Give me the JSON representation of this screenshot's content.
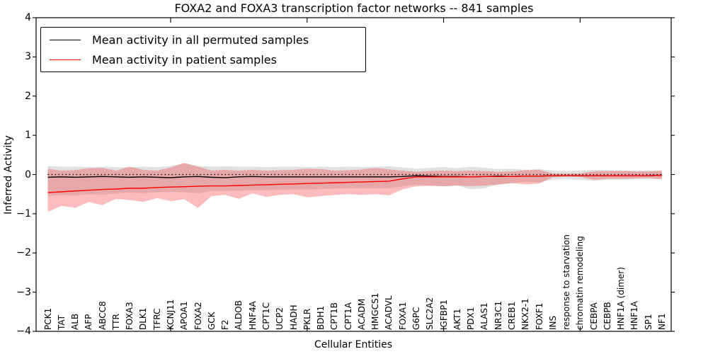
{
  "chart_data": {
    "type": "line",
    "title": "FOXA2 and FOXA3 transcription factor networks -- 841 samples",
    "xlabel": "Cellular Entities",
    "ylabel": "Inferred Activity",
    "ylim": [
      -4,
      4
    ],
    "yticks": [
      4,
      3,
      2,
      1,
      0,
      -1,
      -2,
      -3,
      -4
    ],
    "x_major_tick_categories": [
      10,
      20,
      30,
      40
    ],
    "grid": false,
    "legend_position": "upper left",
    "reference_line": {
      "y": 0.0,
      "style": "dotted",
      "color": "#000000"
    },
    "categories": [
      "PCK1",
      "TAT",
      "ALB",
      "AFP",
      "ABCC8",
      "TTR",
      "FOXA3",
      "DLK1",
      "TFRC",
      "KCNJ11",
      "APOA1",
      "FOXA2",
      "GCK",
      "F2",
      "ALDOB",
      "HNF4A",
      "CPT1C",
      "UCP2",
      "HADH",
      "PKLR",
      "BDH1",
      "CPT1B",
      "CPT1A",
      "ACADM",
      "HMGCS1",
      "ACADVL",
      "FOXA1",
      "G6PC",
      "SLC2A2",
      "IGFBP1",
      "AKT1",
      "PDX1",
      "ALAS1",
      "NR3C1",
      "CREB1",
      "NKX2-1",
      "FOXF1",
      "INS",
      "response to starvation",
      "chromatin remodeling",
      "CEBPA",
      "CEBPB",
      "HNF1A (dimer)",
      "HNF1A",
      "SP1",
      "NF1"
    ],
    "series": [
      {
        "name": "Mean activity in all permuted samples",
        "color": "#000000",
        "style": "solid",
        "values": [
          -0.07,
          -0.06,
          -0.07,
          -0.06,
          -0.05,
          -0.06,
          -0.07,
          -0.06,
          -0.07,
          -0.08,
          -0.06,
          -0.05,
          -0.07,
          -0.08,
          -0.06,
          -0.05,
          -0.06,
          -0.06,
          -0.06,
          -0.06,
          -0.06,
          -0.06,
          -0.06,
          -0.06,
          -0.06,
          -0.06,
          -0.05,
          -0.03,
          -0.04,
          -0.05,
          -0.05,
          -0.06,
          -0.05,
          -0.04,
          -0.05,
          -0.04,
          -0.04,
          -0.03,
          -0.03,
          -0.03,
          -0.03,
          -0.03,
          -0.03,
          -0.03,
          -0.03,
          -0.02
        ]
      },
      {
        "name": "Mean activity in patient samples",
        "color": "#ff0000",
        "style": "solid",
        "values": [
          -0.46,
          -0.44,
          -0.42,
          -0.4,
          -0.38,
          -0.37,
          -0.35,
          -0.35,
          -0.33,
          -0.32,
          -0.31,
          -0.3,
          -0.29,
          -0.29,
          -0.28,
          -0.27,
          -0.26,
          -0.25,
          -0.24,
          -0.23,
          -0.22,
          -0.21,
          -0.2,
          -0.19,
          -0.18,
          -0.17,
          -0.11,
          -0.06,
          -0.06,
          -0.06,
          -0.06,
          -0.06,
          -0.05,
          -0.05,
          -0.05,
          -0.04,
          -0.04,
          -0.03,
          -0.03,
          -0.03,
          -0.03,
          -0.03,
          -0.03,
          -0.03,
          -0.03,
          -0.02
        ]
      }
    ],
    "bands": [
      {
        "name": "permuted-range",
        "color": "#c8c8c8",
        "opacity": 0.55,
        "upper": [
          0.22,
          0.2,
          0.2,
          0.19,
          0.2,
          0.19,
          0.18,
          0.2,
          0.19,
          0.22,
          0.28,
          0.22,
          0.2,
          0.21,
          0.2,
          0.2,
          0.19,
          0.2,
          0.2,
          0.19,
          0.2,
          0.19,
          0.2,
          0.19,
          0.2,
          0.21,
          0.18,
          0.15,
          0.17,
          0.19,
          0.16,
          0.2,
          0.17,
          0.14,
          0.15,
          0.12,
          0.14,
          0.1,
          0.09,
          0.1,
          0.12,
          0.11,
          0.1,
          0.1,
          0.1,
          0.09
        ],
        "lower": [
          -0.55,
          -0.52,
          -0.53,
          -0.5,
          -0.52,
          -0.48,
          -0.46,
          -0.48,
          -0.45,
          -0.44,
          -0.45,
          -0.48,
          -0.42,
          -0.42,
          -0.41,
          -0.4,
          -0.4,
          -0.39,
          -0.38,
          -0.38,
          -0.37,
          -0.36,
          -0.35,
          -0.35,
          -0.34,
          -0.35,
          -0.3,
          -0.26,
          -0.28,
          -0.3,
          -0.28,
          -0.38,
          -0.35,
          -0.25,
          -0.22,
          -0.18,
          -0.2,
          -0.13,
          -0.11,
          -0.13,
          -0.16,
          -0.13,
          -0.13,
          -0.12,
          -0.12,
          -0.12
        ]
      },
      {
        "name": "patient-range",
        "color": "#f04040",
        "opacity": 0.35,
        "upper": [
          0.15,
          0.1,
          0.11,
          0.16,
          0.17,
          0.1,
          0.2,
          0.12,
          0.1,
          0.18,
          0.3,
          0.2,
          0.1,
          0.12,
          0.1,
          0.12,
          0.1,
          0.11,
          0.12,
          0.15,
          0.14,
          0.1,
          0.11,
          0.13,
          0.17,
          0.13,
          0.1,
          0.07,
          0.09,
          0.1,
          0.09,
          0.1,
          0.09,
          0.07,
          0.08,
          0.11,
          0.12,
          0.03,
          0.02,
          0.03,
          0.08,
          0.09,
          0.09,
          0.08,
          0.08,
          0.1
        ],
        "lower": [
          -0.95,
          -0.8,
          -0.85,
          -0.7,
          -0.78,
          -0.62,
          -0.65,
          -0.7,
          -0.6,
          -0.68,
          -0.63,
          -0.85,
          -0.55,
          -0.52,
          -0.62,
          -0.48,
          -0.57,
          -0.52,
          -0.5,
          -0.58,
          -0.55,
          -0.52,
          -0.5,
          -0.52,
          -0.5,
          -0.53,
          -0.38,
          -0.3,
          -0.29,
          -0.3,
          -0.28,
          -0.3,
          -0.28,
          -0.26,
          -0.22,
          -0.25,
          -0.23,
          -0.07,
          -0.05,
          -0.06,
          -0.13,
          -0.11,
          -0.11,
          -0.1,
          -0.09,
          -0.12
        ]
      }
    ]
  }
}
